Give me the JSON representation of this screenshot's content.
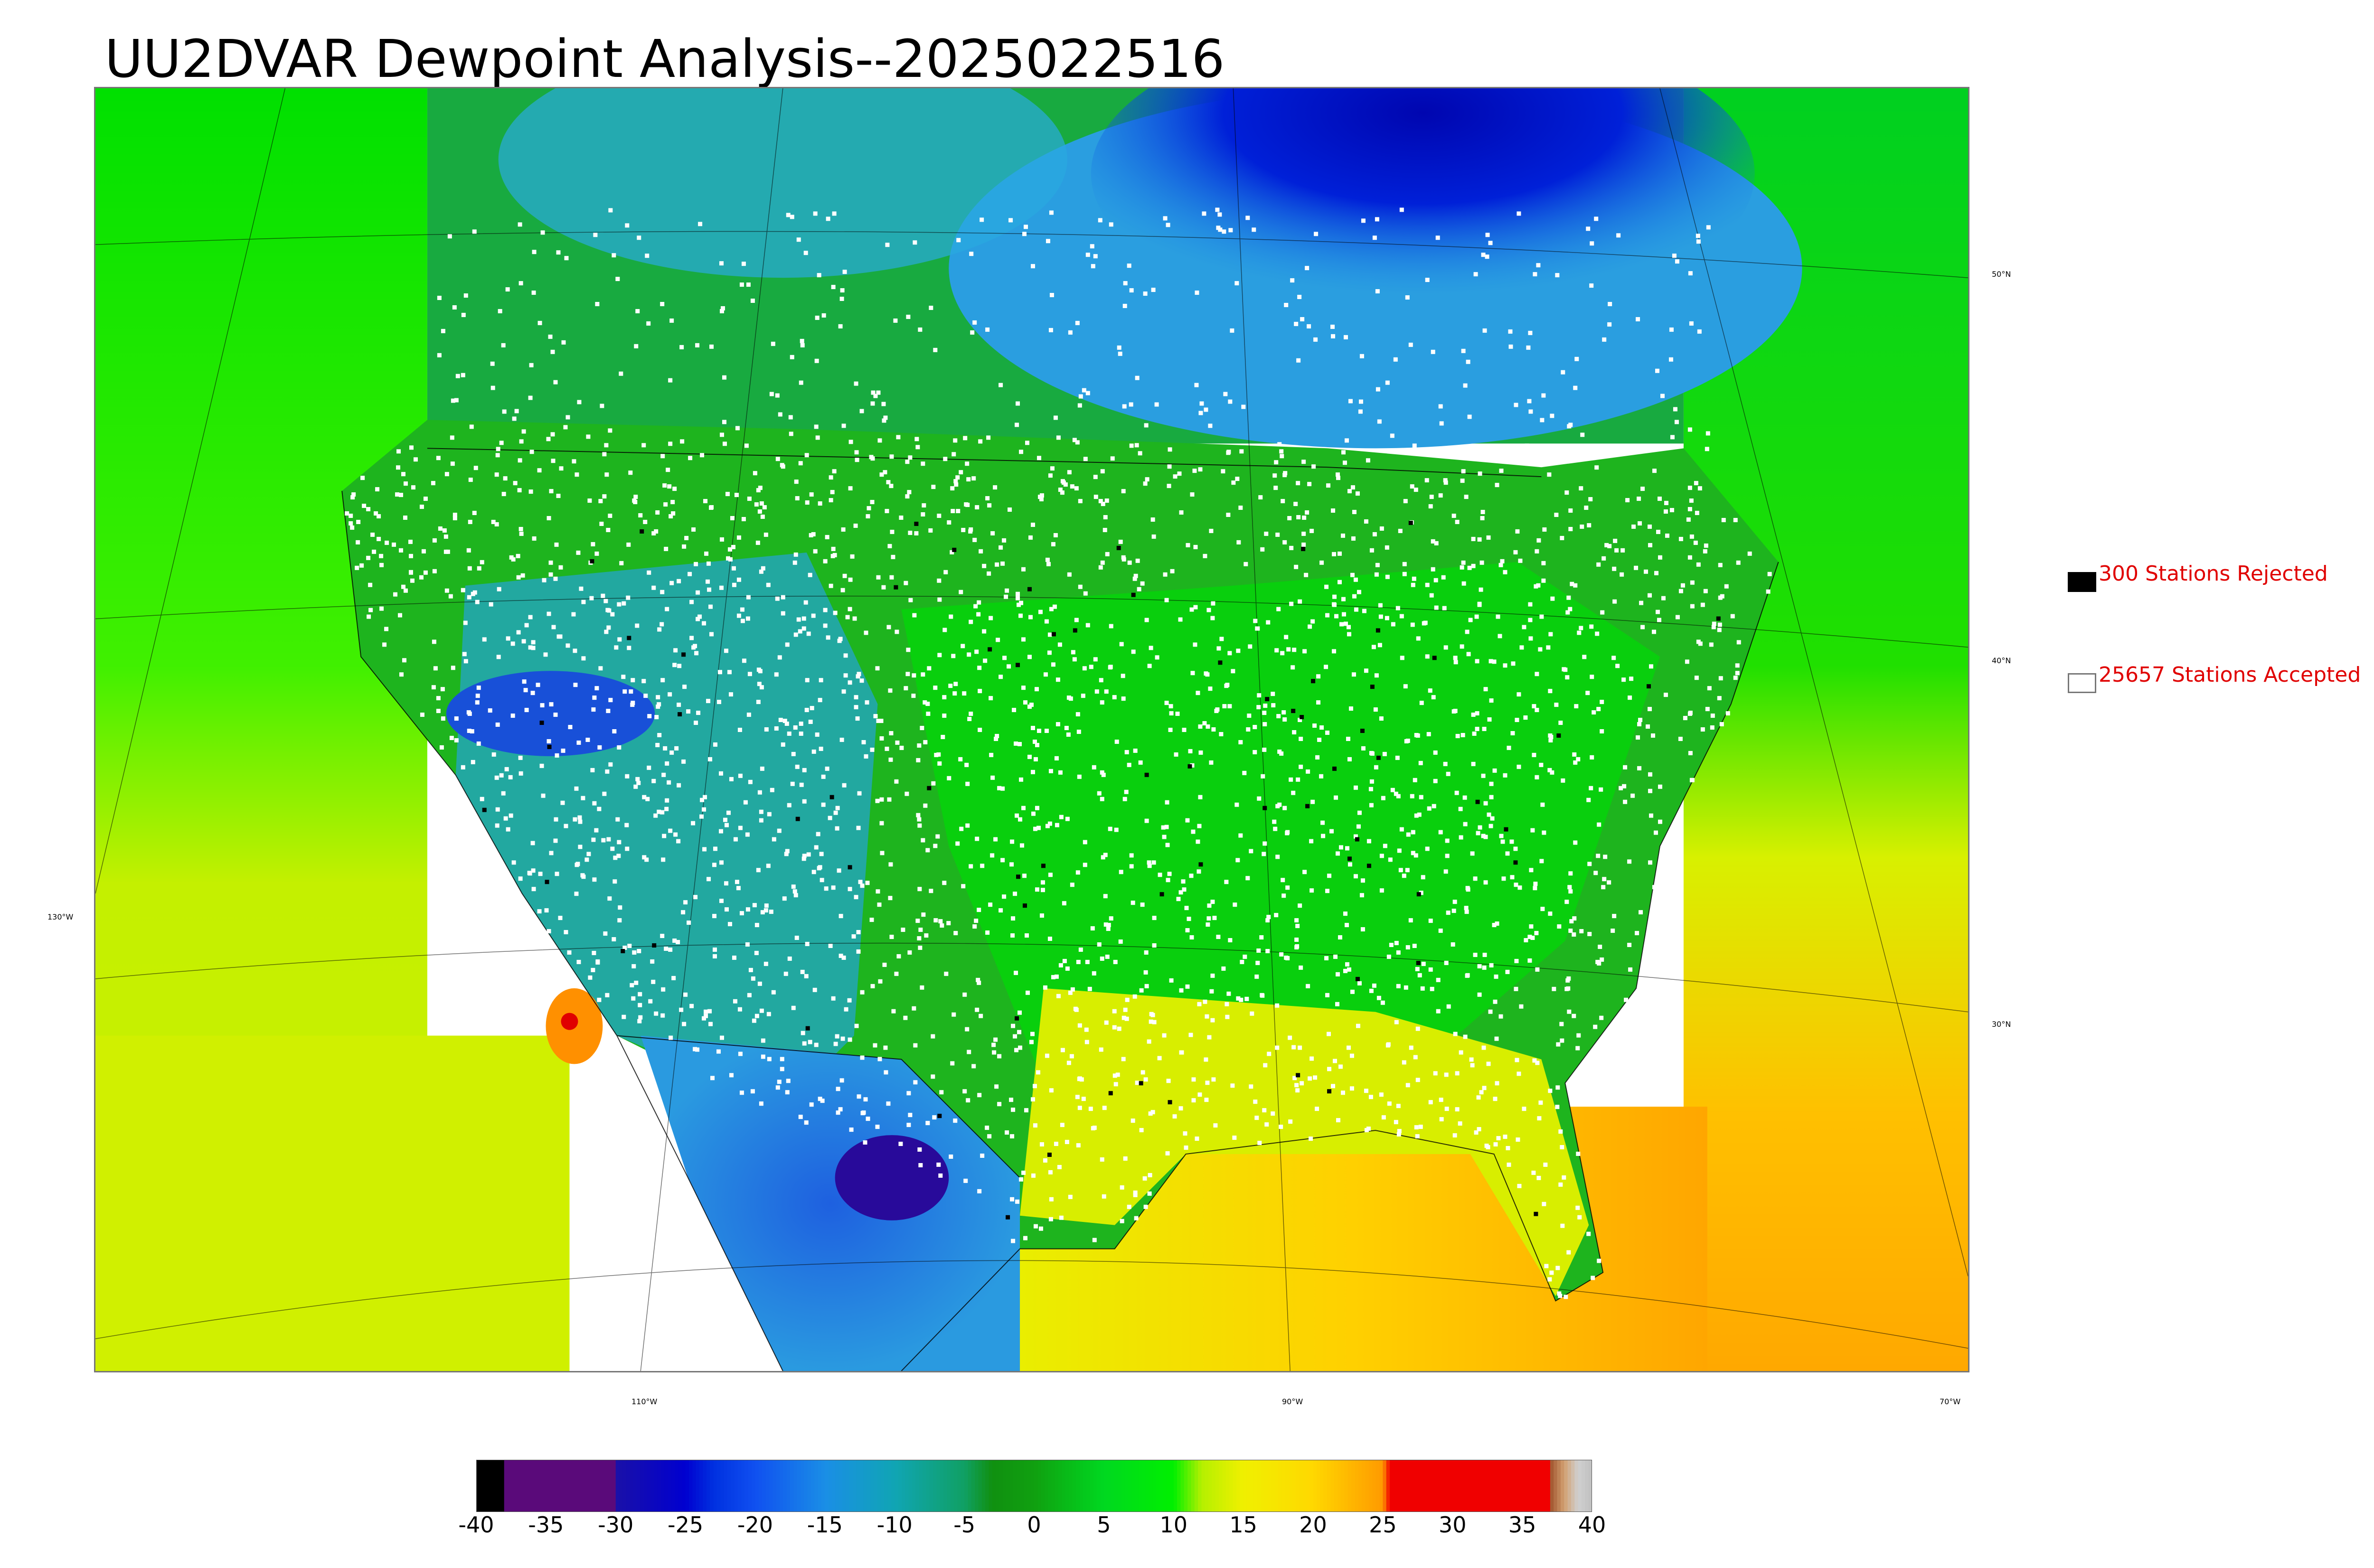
{
  "title": "UU2DVAR Dewpoint Analysis--2025022516",
  "legend": {
    "rejected": {
      "count_label": "300 Stations Rejected",
      "swatch_color": "#000000"
    },
    "accepted": {
      "count_label": "25657 Stations Accepted",
      "swatch_color": "#ffffff"
    }
  },
  "map": {
    "field": "dewpoint",
    "latitude_labels": [
      "50°N",
      "40°N",
      "30°N"
    ],
    "longitude_labels": [
      "130°W",
      "110°W",
      "90°W",
      "70°W"
    ],
    "colors": {
      "ocean_pacific_north": "#00e400",
      "ocean_pacific_south": "#c8f000",
      "gulf_atlantic": "#ffb000",
      "interior_green": "#14b414",
      "canada_blue": "#1e9be0",
      "hudson_deep": "#0010c8",
      "southwest_blue": "#2a7ee0",
      "southeast_yellow": "#d6ee00",
      "station_accepted": "#ffffff",
      "station_rejected": "#000000"
    }
  },
  "colorbar": {
    "min": -40,
    "max": 40,
    "tick_labels": [
      "-40",
      "-35",
      "-30",
      "-25",
      "-20",
      "-15",
      "-10",
      "-5",
      "0",
      "5",
      "10",
      "15",
      "20",
      "25",
      "30",
      "35",
      "40"
    ],
    "stops": [
      {
        "value": -40,
        "color": "#000000"
      },
      {
        "value": -38,
        "color": "#000000"
      },
      {
        "value": -38,
        "color": "#5a0a7a"
      },
      {
        "value": -30,
        "color": "#5a0a7a"
      },
      {
        "value": -30,
        "color": "#1a10a8"
      },
      {
        "value": -25,
        "color": "#0000d0"
      },
      {
        "value": -23,
        "color": "#0030e0"
      },
      {
        "value": -20,
        "color": "#1050f0"
      },
      {
        "value": -15,
        "color": "#1a8ee6"
      },
      {
        "value": -10,
        "color": "#10a5b4"
      },
      {
        "value": -5,
        "color": "#10a064"
      },
      {
        "value": -3,
        "color": "#109010"
      },
      {
        "value": 0,
        "color": "#10a010"
      },
      {
        "value": 5,
        "color": "#00d820"
      },
      {
        "value": 10,
        "color": "#00f000"
      },
      {
        "value": 12,
        "color": "#b4f000"
      },
      {
        "value": 15,
        "color": "#f0f000"
      },
      {
        "value": 20,
        "color": "#ffd800"
      },
      {
        "value": 25,
        "color": "#ff9a00"
      },
      {
        "value": 25.5,
        "color": "#f00000"
      },
      {
        "value": 37,
        "color": "#f00000"
      },
      {
        "value": 37,
        "color": "#a0522d"
      },
      {
        "value": 38,
        "color": "#d2a070"
      },
      {
        "value": 39,
        "color": "#d0d0d0"
      },
      {
        "value": 40,
        "color": "#c0c0c0"
      }
    ]
  }
}
